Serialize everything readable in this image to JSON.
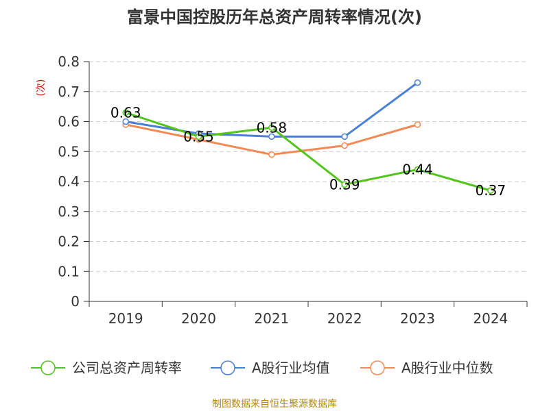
{
  "chart_data": {
    "type": "line",
    "title": "富景中国控股历年总资产周转率情况(次)",
    "ylabel": "(次)",
    "xlabel": "",
    "categories": [
      "2019",
      "2020",
      "2021",
      "2022",
      "2023",
      "2024"
    ],
    "ylim": [
      0,
      0.8
    ],
    "yticks": [
      0,
      0.1,
      0.2,
      0.3,
      0.4,
      0.5,
      0.6,
      0.7,
      0.8
    ],
    "grid": true,
    "legend_position": "bottom",
    "series": [
      {
        "name": "公司总资产周转率",
        "color": "#52c41a",
        "values": [
          0.63,
          0.55,
          0.58,
          0.39,
          0.44,
          0.37
        ],
        "data_labels": [
          "0.63",
          "0.55",
          "0.58",
          "0.39",
          "0.44",
          "0.37"
        ]
      },
      {
        "name": "A股行业均值",
        "color": "#4a7fd6",
        "values": [
          0.6,
          0.56,
          0.55,
          0.55,
          0.73,
          null
        ],
        "data_labels": null
      },
      {
        "name": "A股行业中位数",
        "color": "#f28a55",
        "values": [
          0.59,
          0.54,
          0.49,
          0.52,
          0.59,
          null
        ],
        "data_labels": null
      }
    ]
  },
  "source": "制图数据来自恒生聚源数据库"
}
